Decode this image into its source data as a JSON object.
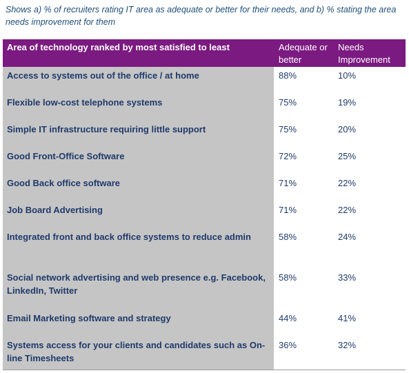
{
  "caption": "Shows a) % of recruiters rating IT area as adequate or better for their needs, and b) % stating the area needs improvement for them",
  "table": {
    "header": {
      "area": "Area of technology ranked by most satisfied to least",
      "adequate": "Adequate or better",
      "needs": "Needs Improvement"
    },
    "rows": [
      {
        "area": "Access to systems out of the office / at home",
        "adequate": "88%",
        "needs": "10%"
      },
      {
        "area": "Flexible low-cost telephone systems",
        "adequate": "75%",
        "needs": "19%"
      },
      {
        "area": "Simple IT infrastructure requiring little support",
        "adequate": "75%",
        "needs": "20%"
      },
      {
        "area": "Good Front-Office Software",
        "adequate": "72%",
        "needs": "25%"
      },
      {
        "area": "Good Back office software",
        "adequate": "71%",
        "needs": "22%"
      },
      {
        "area": "Job Board Advertising",
        "adequate": "71%",
        "needs": "22%"
      },
      {
        "area": "Integrated front and back office systems to reduce admin",
        "adequate": "58%",
        "needs": "24%"
      },
      {
        "area": "Social network advertising and web presence e.g. Facebook, LinkedIn, Twitter",
        "adequate": "58%",
        "needs": "33%"
      },
      {
        "area": "Email Marketing software and strategy",
        "adequate": "44%",
        "needs": "41%"
      },
      {
        "area": "Systems access for your clients and candidates such as On-line Timesheets",
        "adequate": "36%",
        "needs": "32%"
      }
    ]
  },
  "colors": {
    "header_bg": "#7b1a80",
    "left_column_bg": "#c5c5c5",
    "text": "#1f3a6b",
    "caption_text": "#1f4e79"
  }
}
